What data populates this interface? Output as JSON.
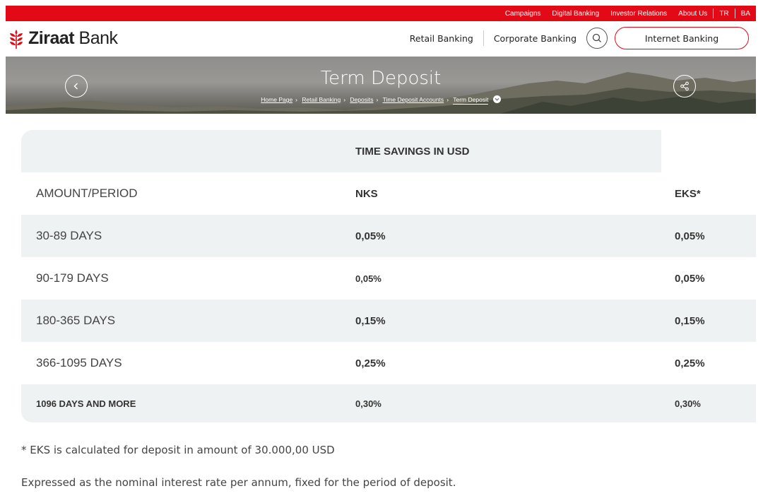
{
  "topbar": {
    "links": [
      "Campaigns",
      "Digital Banking",
      "Investor Relations",
      "About Us",
      "TR",
      "BA"
    ]
  },
  "header": {
    "logo_text_bold": "Ziraat",
    "logo_text": " Bank",
    "nav": [
      "Retail Banking",
      "Corporate Banking"
    ],
    "internet_banking": "Internet Banking",
    "brand_color": "#e30a17"
  },
  "hero": {
    "title": "Term Deposit",
    "breadcrumb": [
      "Home Page",
      "Retail Banking",
      "Deposits",
      "Time Deposit Accounts",
      "Term Deposit"
    ]
  },
  "table": {
    "title": "TIME SAVINGS IN USD",
    "headers": [
      "AMOUNT/PERIOD",
      "NKS",
      "EKS*"
    ],
    "rows": [
      [
        "30-89 DAYS",
        "0,05%",
        "0,05%"
      ],
      [
        "90-179 DAYS",
        "0,05%",
        "0,05%"
      ],
      [
        "180-365 DAYS",
        "0,15%",
        "0,15%"
      ],
      [
        "366-1095 DAYS",
        "0,25%",
        "0,25%"
      ],
      [
        "1096 DAYS AND MORE",
        "0,30%",
        "0,30%"
      ]
    ]
  },
  "notes": [
    "* EKS is calculated for deposit in amount of 30.000,00 USD",
    "Expressed as the nominal interest rate per annum, fixed for the period of deposit."
  ]
}
